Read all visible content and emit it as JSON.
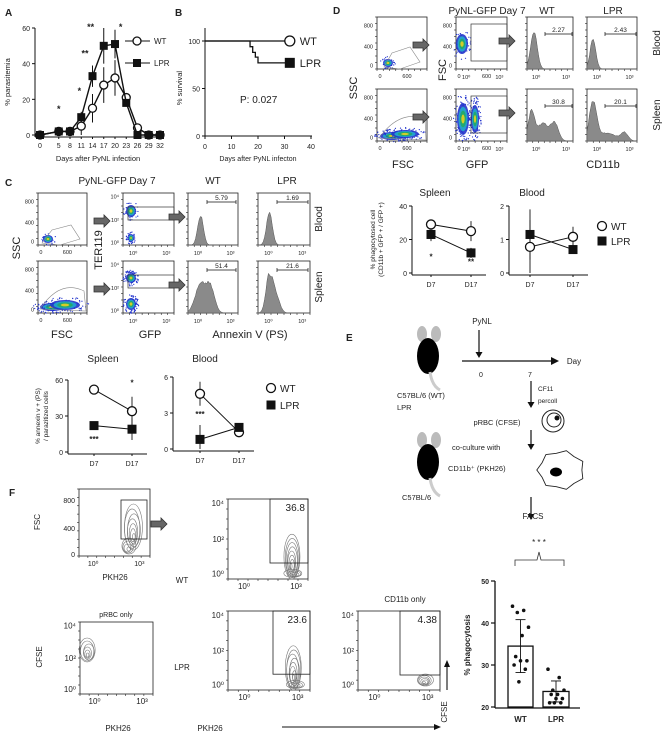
{
  "panel_labels": {
    "A": "A",
    "B": "B",
    "C": "C",
    "D": "D",
    "E": "E",
    "F": "F"
  },
  "ticks": {
    "scatter_y": [
      "800",
      "400",
      "0"
    ],
    "scatter_x": [
      "0",
      "600"
    ],
    "log_x": [
      "10⁰",
      "10³"
    ],
    "log_y": [
      "10⁴",
      "10²",
      "10⁰"
    ]
  },
  "chart_data": [
    {
      "id": "A",
      "type": "line",
      "xlabel": "Days after PyNL infection",
      "ylabel": "% parasitemia",
      "x": [
        0,
        5,
        8,
        11,
        14,
        17,
        20,
        23,
        26,
        29,
        32
      ],
      "x_tick_labels": [
        "0",
        "5",
        "8",
        "11",
        "14",
        "17",
        "20",
        "23",
        "26",
        "29",
        "32"
      ],
      "ylim": [
        0,
        60
      ],
      "y_tick_labels": [
        "0",
        "20",
        "40",
        "60"
      ],
      "yticks": [
        0,
        20,
        40,
        60
      ],
      "series": [
        {
          "name": "WT",
          "marker": "open-circle",
          "values": [
            0,
            2,
            2,
            5,
            15,
            28,
            32,
            21,
            4,
            0,
            0
          ],
          "error": [
            0,
            1,
            1,
            5,
            8,
            10,
            10,
            2,
            2,
            0,
            0
          ]
        },
        {
          "name": "LPR",
          "marker": "filled-square",
          "values": [
            0,
            2,
            2,
            10,
            33,
            50,
            51,
            18,
            0,
            0,
            0
          ],
          "error": [
            0,
            1,
            1,
            3,
            6,
            10,
            8,
            2,
            1,
            0,
            0
          ]
        }
      ],
      "annotations": [
        {
          "x": 5,
          "y": 13,
          "text": "*"
        },
        {
          "x": 10.5,
          "y": 23,
          "text": "*"
        },
        {
          "x": 12,
          "y": 44,
          "text": "**"
        },
        {
          "x": 13.5,
          "y": 59,
          "text": "**"
        },
        {
          "x": 21.5,
          "y": 59,
          "text": "*"
        }
      ],
      "legend": "top-right"
    },
    {
      "id": "B",
      "type": "line",
      "step": true,
      "xlabel": "Days after PyNL infecton",
      "ylabel": "% survival",
      "xlim": [
        0,
        40
      ],
      "xticks": [
        0,
        10,
        20,
        30,
        40
      ],
      "x_tick_labels": [
        "0",
        "10",
        "20",
        "30",
        "40"
      ],
      "ylim": [
        0,
        100
      ],
      "yticks": [
        0,
        50,
        100
      ],
      "y_tick_labels": [
        "0",
        "50",
        "100"
      ],
      "series": [
        {
          "name": "WT",
          "marker": "open-circle",
          "x": [
            0,
            32
          ],
          "values": [
            100,
            100
          ]
        },
        {
          "name": "LPR",
          "marker": "filled-square",
          "x": [
            0,
            17,
            18,
            19,
            20,
            32
          ],
          "values": [
            100,
            94,
            88,
            83,
            77,
            77
          ]
        }
      ],
      "annotation": "P: 0.027",
      "legend": "right"
    },
    {
      "id": "C-spleen",
      "type": "line",
      "title": "Spleen",
      "ylabel": [
        "% annexin v + (PS)",
        "/ parazitized cells"
      ],
      "categories": [
        "D7",
        "D17"
      ],
      "ylim": [
        0,
        60
      ],
      "yticks": [
        0,
        30,
        60
      ],
      "y_tick_labels": [
        "0",
        "30",
        "60"
      ],
      "series": [
        {
          "name": "WT",
          "values": [
            52,
            34
          ],
          "error": [
            4,
            12
          ]
        },
        {
          "name": "LPR",
          "values": [
            22,
            19
          ],
          "error": [
            2,
            9
          ]
        }
      ],
      "annotations": [
        {
          "category": "D7",
          "y": 11,
          "text": "***"
        },
        {
          "category": "D17",
          "y": 58,
          "text": "*"
        }
      ]
    },
    {
      "id": "C-blood",
      "type": "line",
      "title": "Blood",
      "categories": [
        "D7",
        "D17"
      ],
      "ylim": [
        0,
        6
      ],
      "yticks": [
        0,
        3,
        6
      ],
      "y_tick_labels": [
        "0",
        "3",
        "6"
      ],
      "series": [
        {
          "name": "WT",
          "values": [
            4.6,
            1.4
          ],
          "error": [
            1.0,
            0.2
          ]
        },
        {
          "name": "LPR",
          "values": [
            0.8,
            1.8
          ],
          "error": [
            1.2,
            0.3
          ]
        }
      ],
      "annotations": [
        {
          "category": "D7",
          "y": 2.9,
          "text": "***"
        }
      ],
      "legend": [
        "WT",
        "LPR"
      ]
    },
    {
      "id": "D-spleen",
      "type": "line",
      "title": "Spleen",
      "ylabel": [
        "% phagocytosed cell",
        "(CD11b + GFP + / GFP +)"
      ],
      "categories": [
        "D7",
        "D17"
      ],
      "ylim": [
        0,
        40
      ],
      "yticks": [
        0,
        20,
        40
      ],
      "y_tick_labels": [
        "0",
        "20",
        "40"
      ],
      "series": [
        {
          "name": "WT",
          "values": [
            29,
            25
          ],
          "error": [
            1,
            6
          ]
        },
        {
          "name": "LPR",
          "values": [
            23,
            12
          ],
          "error": [
            4,
            3
          ]
        }
      ],
      "annotations": [
        {
          "category": "D7",
          "y": 10,
          "text": "*"
        },
        {
          "category": "D17",
          "y": 7,
          "text": "**"
        }
      ]
    },
    {
      "id": "D-blood",
      "type": "line",
      "title": "Blood",
      "categories": [
        "D7",
        "D17"
      ],
      "ylim": [
        0,
        2
      ],
      "yticks": [
        0,
        1,
        2
      ],
      "y_tick_labels": [
        "0",
        "1",
        "2"
      ],
      "series": [
        {
          "name": "WT",
          "values": [
            0.78,
            1.08
          ],
          "error": [
            0.8,
            0.3
          ]
        },
        {
          "name": "LPR",
          "values": [
            1.15,
            0.7
          ],
          "error": [
            0.75,
            0.1
          ]
        }
      ],
      "legend": [
        "WT",
        "LPR"
      ]
    },
    {
      "id": "F-bar",
      "type": "bar",
      "ylabel": "% phagocytosis",
      "categories": [
        "WT",
        "LPR"
      ],
      "ylim": [
        20,
        50
      ],
      "yticks": [
        20,
        30,
        40,
        50
      ],
      "y_tick_labels": [
        "20",
        "30",
        "40",
        "50"
      ],
      "values": [
        34.5,
        23.7
      ],
      "error": [
        6.3,
        2.5
      ],
      "points": [
        [
          44,
          43,
          42.5,
          39,
          37,
          32,
          31,
          31,
          30,
          29,
          26
        ],
        [
          29,
          27,
          24,
          24,
          23,
          23,
          22,
          22,
          21,
          21,
          21
        ]
      ],
      "significance": "* * *"
    }
  ],
  "legend": {
    "wt": "WT",
    "lpr": "LPR"
  },
  "panel_c": {
    "title": "PyNL-GFP Day 7",
    "col_wt": "WT",
    "col_lpr": "LPR",
    "row_blood": "Blood",
    "row_spleen": "Spleen",
    "ax_ssc": "SSC",
    "ax_ter119": "TER119",
    "ax_fsc": "FSC",
    "ax_gfp": "GFP",
    "ax_annexin": "Annexin V (PS)",
    "gates": {
      "blood_wt": "5.79",
      "blood_lpr": "1.69",
      "spleen_wt": "51.4",
      "spleen_lpr": "21.6"
    }
  },
  "panel_d": {
    "title": "PyNL-GFP Day 7",
    "col_wt": "WT",
    "col_lpr": "LPR",
    "row_blood": "Blood",
    "row_spleen": "Spleen",
    "ax_ssc": "SSC",
    "ax_fsc_y": "FSC",
    "ax_fsc": "FSC",
    "ax_gfp": "GFP",
    "ax_cd11b": "CD11b",
    "gates": {
      "blood_wt": "2.27",
      "blood_lpr": "2.43",
      "spleen_wt": "30.8",
      "spleen_lpr": "20.1"
    }
  },
  "panel_e": {
    "pynl": "PyNL",
    "day": "Day",
    "day0": "0",
    "day7": "7",
    "cf11": "CF11",
    "percoll": "percoll",
    "strain1": "C57BL/6 (WT)",
    "strain1b": "LPR",
    "prbc": "pRBC (CFSE)",
    "coculture": "co-culture with",
    "cd11b": "CD11b⁺ (PKH26)",
    "strain2": "C57BL/6",
    "facs": "FACS"
  },
  "panel_f": {
    "ax_fsc": "FSC",
    "ax_pkh26": "PKH26",
    "ax_cfse": "CFSE",
    "row_wt": "WT",
    "row_lpr": "LPR",
    "prbc_only": "pRBC only",
    "cd11b_only": "CD11b only",
    "gates": {
      "wt": "36.8",
      "lpr": "23.6",
      "cd11b_only": "4.38"
    }
  },
  "colors": {
    "marker": "#000000",
    "histogram": "#8a8a8a",
    "density_low": "#2233cc",
    "density_mid": "#22aa66",
    "density_high": "#e8d020"
  }
}
